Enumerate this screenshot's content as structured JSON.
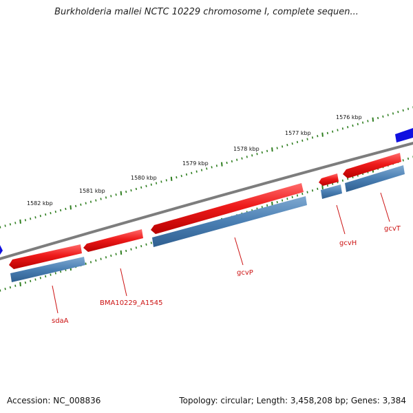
{
  "title": "Burkholderia mallei NCTC 10229 chromosome I, complete sequen...",
  "footer": {
    "accession": "Accession: NC_008836",
    "summary": "Topology: circular; Length: 3,458,208 bp; Genes: 3,384"
  },
  "scale_labels": [
    "1582 kbp",
    "1581 kbp",
    "1580 kbp",
    "1579 kbp",
    "1578 kbp",
    "1577 kbp",
    "1576 kbp"
  ],
  "gene_labels": [
    "sdaA",
    "BMA10229_A1545",
    "gcvP",
    "gcvH",
    "gcvT"
  ],
  "colors": {
    "forward_cds": "#e8151c",
    "gene_track": "#4a7fb3",
    "backbone": "#7d7d7d",
    "tick": "#2d7d1e",
    "label": "#cc1111",
    "edge_feature": "#1010e0"
  }
}
